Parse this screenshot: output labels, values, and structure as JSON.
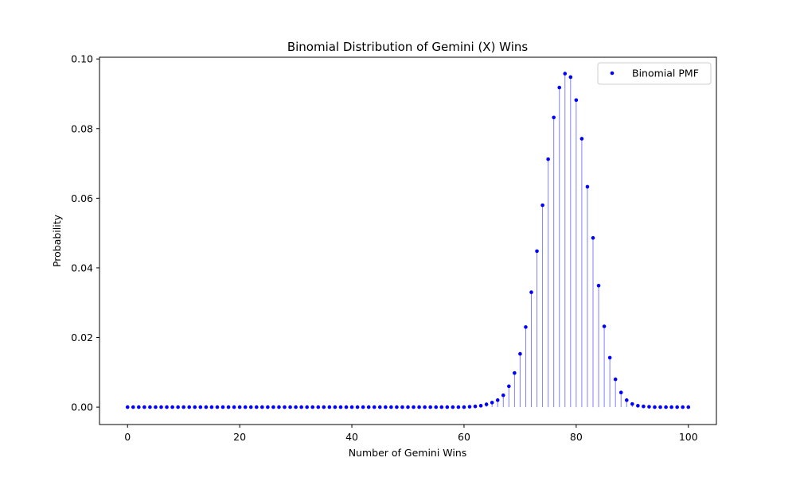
{
  "chart_data": {
    "type": "scatter",
    "title": "Binomial Distribution of Gemini (X) Wins",
    "xlabel": "Number of Gemini Wins",
    "ylabel": "Probability",
    "xlim": [
      -5,
      105
    ],
    "ylim": [
      -0.005,
      0.1005
    ],
    "xticks": [
      0,
      20,
      40,
      60,
      80,
      100
    ],
    "yticks": [
      0.0,
      0.02,
      0.04,
      0.06,
      0.08,
      0.1
    ],
    "ytick_labels": [
      "0.00",
      "0.02",
      "0.04",
      "0.06",
      "0.08",
      "0.10"
    ],
    "grid": false,
    "legend_position": "top-right",
    "colors": {
      "marker": "#0000ff",
      "stem": "#8080ff"
    },
    "series": [
      {
        "name": "Binomial PMF",
        "x": [
          0,
          1,
          2,
          3,
          4,
          5,
          6,
          7,
          8,
          9,
          10,
          11,
          12,
          13,
          14,
          15,
          16,
          17,
          18,
          19,
          20,
          21,
          22,
          23,
          24,
          25,
          26,
          27,
          28,
          29,
          30,
          31,
          32,
          33,
          34,
          35,
          36,
          37,
          38,
          39,
          40,
          41,
          42,
          43,
          44,
          45,
          46,
          47,
          48,
          49,
          50,
          51,
          52,
          53,
          54,
          55,
          56,
          57,
          58,
          59,
          60,
          61,
          62,
          63,
          64,
          65,
          66,
          67,
          68,
          69,
          70,
          71,
          72,
          73,
          74,
          75,
          76,
          77,
          78,
          79,
          80,
          81,
          82,
          83,
          84,
          85,
          86,
          87,
          88,
          89,
          90,
          91,
          92,
          93,
          94,
          95,
          96,
          97,
          98,
          99,
          100
        ],
        "y": [
          0,
          0,
          0,
          0,
          0,
          0,
          0,
          0,
          0,
          0,
          0,
          0,
          0,
          0,
          0,
          0,
          0,
          0,
          0,
          0,
          0,
          0,
          0,
          0,
          0,
          0,
          0,
          0,
          0,
          0,
          0,
          0,
          0,
          0,
          0,
          0,
          0,
          0,
          0,
          0,
          0,
          0,
          0,
          0,
          0,
          0,
          0,
          0,
          0,
          0,
          0,
          0,
          0,
          0,
          0,
          0,
          0,
          0,
          0,
          0,
          0,
          0.0001,
          0.0002,
          0.0004,
          0.0008,
          0.0013,
          0.002,
          0.0034,
          0.006,
          0.0098,
          0.0153,
          0.023,
          0.033,
          0.0448,
          0.058,
          0.0712,
          0.0832,
          0.0918,
          0.0958,
          0.0948,
          0.0882,
          0.0771,
          0.0633,
          0.0486,
          0.0349,
          0.0232,
          0.0142,
          0.008,
          0.0042,
          0.002,
          0.0009,
          0.0004,
          0.0002,
          0.0001,
          0,
          0,
          0,
          0,
          0,
          0,
          0
        ]
      }
    ]
  }
}
